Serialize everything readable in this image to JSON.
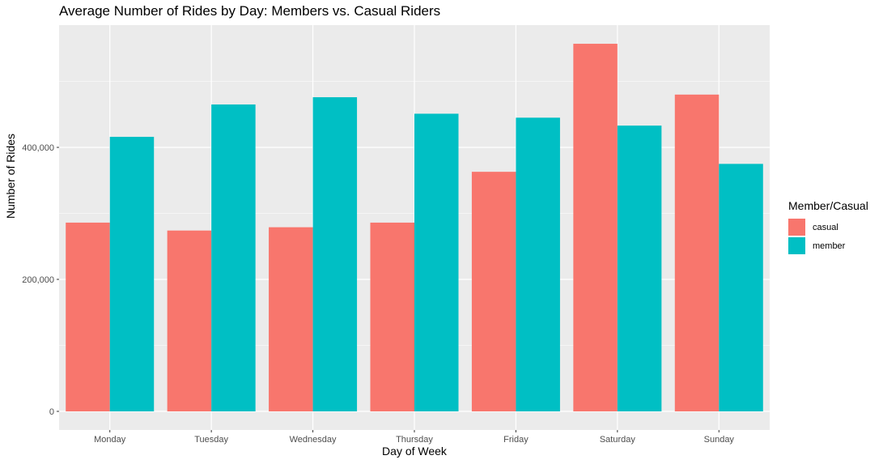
{
  "chart_data": {
    "type": "bar",
    "title": "Average Number of Rides by Day: Members vs. Casual Riders",
    "xlabel": "Day of Week",
    "ylabel": "Number of Rides",
    "categories": [
      "Monday",
      "Tuesday",
      "Wednesday",
      "Thursday",
      "Friday",
      "Saturday",
      "Sunday"
    ],
    "series": [
      {
        "name": "casual",
        "color": "#F8766D",
        "values": [
          286000,
          274000,
          279000,
          286000,
          363000,
          557000,
          480000
        ]
      },
      {
        "name": "member",
        "color": "#00BFC4",
        "values": [
          416000,
          465000,
          476000,
          451000,
          445000,
          433000,
          375000
        ]
      }
    ],
    "ylim": [
      0,
      595000
    ],
    "yticks": [
      0,
      200000,
      400000
    ],
    "ytick_labels": [
      "0",
      "200,000",
      "400,000"
    ],
    "grid": true,
    "legend": {
      "title": "Member/Casual",
      "position": "right"
    }
  }
}
